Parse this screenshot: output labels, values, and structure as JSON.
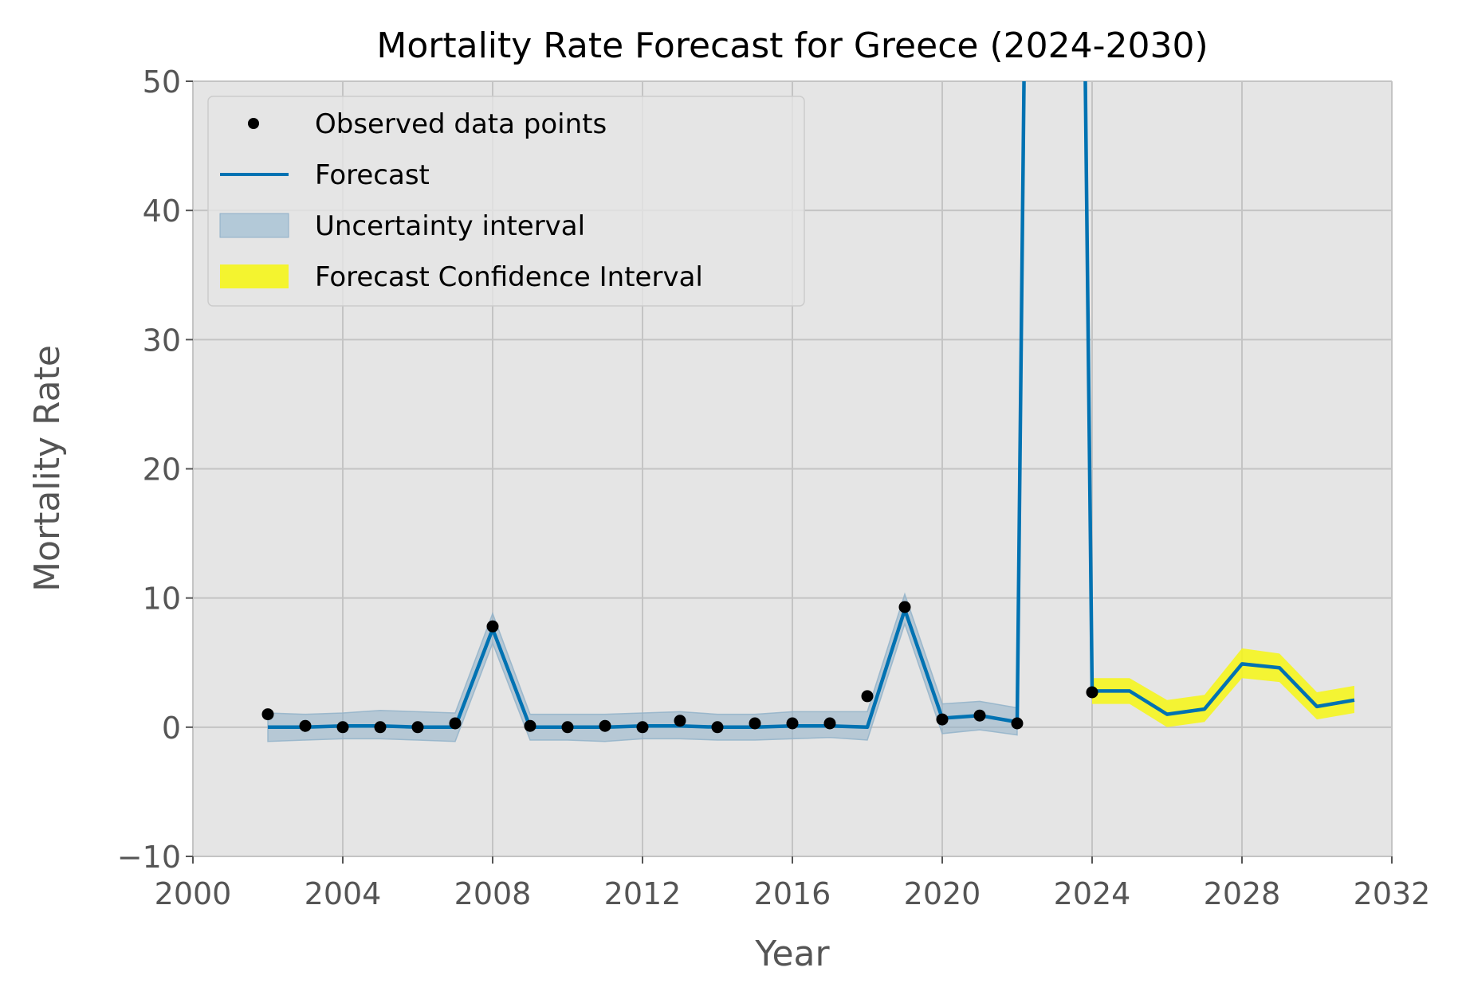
{
  "chart_data": {
    "type": "line",
    "title": "Mortality Rate Forecast for Greece (2024-2030)",
    "xlabel": "Year",
    "ylabel": "Mortality Rate",
    "xlim": [
      2000,
      2032
    ],
    "ylim": [
      -10,
      50
    ],
    "xticks": [
      2000,
      2004,
      2008,
      2012,
      2016,
      2020,
      2024,
      2028,
      2032
    ],
    "yticks": [
      -10,
      0,
      10,
      20,
      30,
      40,
      50
    ],
    "xtick_labels": [
      "2000",
      "2004",
      "2008",
      "2012",
      "2016",
      "2020",
      "2024",
      "2028",
      "2032"
    ],
    "ytick_labels": [
      "−10",
      "0",
      "10",
      "20",
      "30",
      "40",
      "50"
    ],
    "grid": true,
    "legend_position": "top-left",
    "series": [
      {
        "name": "Observed data points",
        "kind": "scatter",
        "color": "#000000",
        "x": [
          2002,
          2003,
          2004,
          2005,
          2006,
          2007,
          2008,
          2009,
          2010,
          2011,
          2012,
          2013,
          2014,
          2015,
          2016,
          2017,
          2018,
          2019,
          2020,
          2021,
          2022,
          2024
        ],
        "y": [
          1.0,
          0.1,
          0.0,
          0.0,
          0.0,
          0.3,
          7.8,
          0.1,
          0.0,
          0.1,
          0.0,
          0.5,
          0.0,
          0.3,
          0.3,
          0.3,
          2.4,
          9.3,
          0.6,
          0.9,
          0.3,
          2.7
        ]
      },
      {
        "name": "Forecast",
        "kind": "line",
        "color": "#0072b2",
        "x": [
          2002,
          2003,
          2004,
          2005,
          2006,
          2007,
          2008,
          2009,
          2010,
          2011,
          2012,
          2013,
          2014,
          2015,
          2016,
          2017,
          2018,
          2019,
          2020,
          2021,
          2022,
          2022.2,
          2023.8,
          2024,
          2025,
          2026,
          2027,
          2028,
          2029,
          2030,
          2031
        ],
        "y": [
          0.0,
          0.0,
          0.1,
          0.1,
          0.0,
          0.0,
          7.6,
          0.0,
          0.0,
          0.0,
          0.1,
          0.1,
          0.0,
          0.0,
          0.1,
          0.1,
          0.0,
          9.1,
          0.7,
          0.9,
          0.4,
          55,
          55,
          2.8,
          2.8,
          1.0,
          1.4,
          4.9,
          4.6,
          1.6,
          2.1
        ]
      },
      {
        "name": "Uncertainty interval",
        "kind": "band",
        "color": "#8fb0c8",
        "x": [
          2002,
          2003,
          2004,
          2005,
          2006,
          2007,
          2008,
          2009,
          2010,
          2011,
          2012,
          2013,
          2014,
          2015,
          2016,
          2017,
          2018,
          2019,
          2020,
          2021,
          2022
        ],
        "lower": [
          -1.1,
          -1.0,
          -0.9,
          -0.9,
          -1.0,
          -1.1,
          6.5,
          -1.0,
          -1.0,
          -1.1,
          -0.9,
          -0.9,
          -1.0,
          -1.0,
          -0.9,
          -0.8,
          -1.0,
          8.0,
          -0.5,
          -0.2,
          -0.6
        ],
        "upper": [
          1.1,
          1.0,
          1.1,
          1.3,
          1.2,
          1.1,
          8.8,
          1.0,
          1.0,
          1.0,
          1.1,
          1.2,
          1.0,
          1.0,
          1.2,
          1.2,
          1.2,
          10.3,
          1.8,
          2.0,
          1.5
        ]
      },
      {
        "name": "Forecast Confidence Interval",
        "kind": "band",
        "color": "#f5f51f",
        "x": [
          2024,
          2025,
          2026,
          2027,
          2028,
          2029,
          2030,
          2031
        ],
        "lower": [
          1.8,
          1.8,
          0.0,
          0.4,
          3.8,
          3.5,
          0.6,
          1.1
        ],
        "upper": [
          3.8,
          3.8,
          2.1,
          2.5,
          6.1,
          5.7,
          2.7,
          3.2
        ]
      }
    ]
  }
}
